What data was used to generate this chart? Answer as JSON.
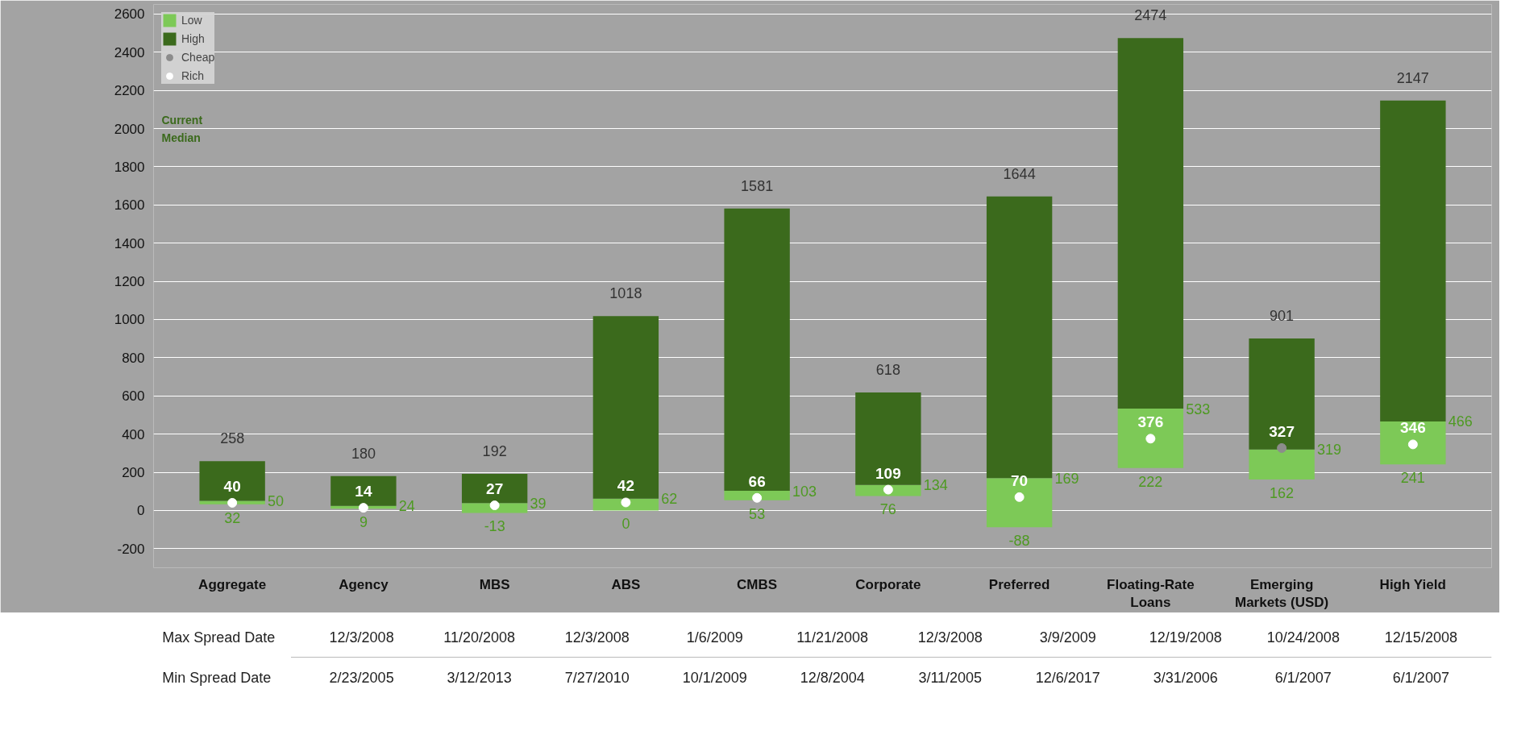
{
  "chart_data": {
    "type": "bar",
    "categories": [
      "Aggregate",
      "Agency",
      "MBS",
      "ABS",
      "CMBS",
      "Corporate",
      "Preferred",
      "Floating-Rate Loans",
      "Emerging Markets (USD)",
      "High Yield"
    ],
    "series": [
      {
        "name": "Low",
        "color": "#7dc957",
        "base": [
          32,
          9,
          -13,
          0,
          53,
          76,
          -88,
          222,
          162,
          241
        ],
        "values": [
          18,
          15,
          52,
          62,
          50,
          58,
          257,
          311,
          157,
          225
        ]
      },
      {
        "name": "High",
        "color": "#3b6a1c",
        "base": [
          50,
          24,
          39,
          62,
          103,
          134,
          169,
          533,
          319,
          466
        ],
        "values": [
          208,
          156,
          153,
          956,
          1478,
          484,
          1475,
          1941,
          582,
          1681
        ],
        "value_labels": [
          "258",
          "180",
          "192",
          "1018",
          "1581",
          "618",
          "1644",
          "2474",
          "901",
          "2147"
        ]
      },
      {
        "name": "Cheap",
        "type": "scatter",
        "color": "#8c8c8c",
        "values": [
          null,
          null,
          null,
          null,
          null,
          null,
          null,
          null,
          327,
          null
        ],
        "value_labels": [
          null,
          null,
          null,
          null,
          null,
          null,
          null,
          null,
          "327",
          null
        ]
      },
      {
        "name": "Rich",
        "type": "scatter",
        "color": "#ffffff",
        "values": [
          40,
          14,
          27,
          42,
          66,
          109,
          70,
          376,
          null,
          346
        ],
        "value_labels": [
          "40",
          "14",
          "27",
          "42",
          "66",
          "109",
          "70",
          "376",
          null,
          "346"
        ]
      }
    ],
    "ylim": [
      -300,
      2650
    ],
    "yticks": [
      -200,
      0,
      200,
      400,
      600,
      800,
      1000,
      1200,
      1400,
      1600,
      1800,
      2000,
      2200,
      2400,
      2600
    ],
    "grid": "y",
    "legend": "top left",
    "marker": "circle",
    "annotations": [
      "Current",
      "Median",
      "Max Spread Date",
      "12/3/2008",
      "11/20/2008",
      "12/3/2008",
      "1/6/2009",
      "11/21/2008",
      "12/3/2008",
      "3/9/2009",
      "12/19/2008",
      "10/24/2008",
      "12/15/2008",
      "Min Spread Date",
      "2/23/2005",
      "3/12/2013",
      "7/27/2010",
      "10/1/2009",
      "12/8/2004",
      "3/11/2005",
      "12/6/2017",
      "3/31/2006",
      "6/1/2007",
      "6/1/2007",
      {
        "text": "50",
        "x": "Aggregate",
        "y": 50
      },
      {
        "text": "24",
        "x": "Agency",
        "y": 24
      },
      {
        "text": "39",
        "x": "MBS",
        "y": 39
      },
      {
        "text": "62",
        "x": "ABS",
        "y": 62
      },
      {
        "text": "103",
        "x": "CMBS",
        "y": 103
      },
      {
        "text": "134",
        "x": "Corporate",
        "y": 134
      },
      {
        "text": "169",
        "x": "Preferred",
        "y": 169
      },
      {
        "text": "533",
        "x": "Floating-Rate Loans",
        "y": 533
      },
      {
        "text": "319",
        "x": "Emerging Markets (USD)",
        "y": 319
      },
      {
        "text": "466",
        "x": "High Yield",
        "y": 466
      },
      {
        "text": "32",
        "x": "Aggregate",
        "y": 32
      },
      {
        "text": "9",
        "x": "Agency",
        "y": 9
      },
      {
        "text": "-13",
        "x": "MBS",
        "y": -13
      },
      {
        "text": "0",
        "x": "ABS",
        "y": 0
      },
      {
        "text": "53",
        "x": "CMBS",
        "y": 53
      },
      {
        "text": "76",
        "x": "Corporate",
        "y": 76
      },
      {
        "text": "-88",
        "x": "Preferred",
        "y": -88
      },
      {
        "text": "222",
        "x": "Floating-Rate Loans",
        "y": 222
      },
      {
        "text": "162",
        "x": "Emerging Markets (USD)",
        "y": 162
      },
      {
        "text": "241",
        "x": "High Yield",
        "y": 241
      }
    ]
  }
}
